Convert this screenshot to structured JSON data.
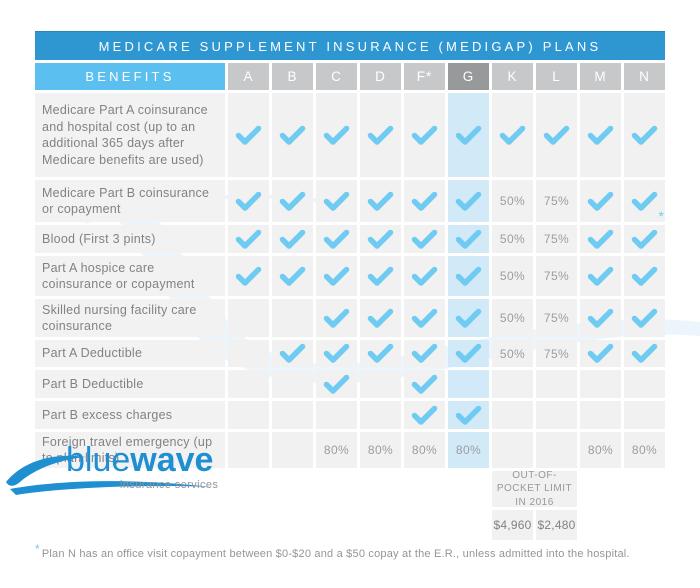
{
  "title": "MEDICARE SUPPLEMENT INSURANCE (MEDIGAP) PLANS",
  "header": {
    "benefits_label": "BENEFITS",
    "plans": [
      "A",
      "B",
      "C",
      "D",
      "F*",
      "G",
      "K",
      "L",
      "M",
      "N"
    ],
    "highlighted_plan": "G"
  },
  "rows": [
    {
      "benefit": "Medicare Part A coinsurance and hospital cost (up to an additional 365 days after Medicare benefits are used)",
      "values": [
        "check",
        "check",
        "check",
        "check",
        "check",
        "check",
        "check",
        "check",
        "check",
        "check"
      ]
    },
    {
      "benefit": "Medicare Part B coinsurance or copayment",
      "values": [
        "check",
        "check",
        "check",
        "check",
        "check",
        "check",
        "50%",
        "75%",
        "check",
        "check*"
      ]
    },
    {
      "benefit": "Blood (First 3 pints)",
      "values": [
        "check",
        "check",
        "check",
        "check",
        "check",
        "check",
        "50%",
        "75%",
        "check",
        "check"
      ]
    },
    {
      "benefit": "Part A hospice care coinsurance or copayment",
      "values": [
        "check",
        "check",
        "check",
        "check",
        "check",
        "check",
        "50%",
        "75%",
        "check",
        "check"
      ]
    },
    {
      "benefit": "Skilled nursing facility care coinsurance",
      "values": [
        "",
        "",
        "check",
        "check",
        "check",
        "check",
        "50%",
        "75%",
        "check",
        "check"
      ]
    },
    {
      "benefit": "Part A Deductible",
      "values": [
        "",
        "check",
        "check",
        "check",
        "check",
        "check",
        "50%",
        "75%",
        "check",
        "check"
      ]
    },
    {
      "benefit": "Part B Deductible",
      "values": [
        "",
        "",
        "check",
        "",
        "check",
        "",
        "",
        "",
        "",
        ""
      ]
    },
    {
      "benefit": "Part B excess charges",
      "values": [
        "",
        "",
        "",
        "",
        "check",
        "check",
        "",
        "",
        "",
        ""
      ]
    },
    {
      "benefit": "Foreign travel emergency (up to plan limits)",
      "values": [
        "",
        "",
        "80%",
        "80%",
        "80%",
        "80%",
        "",
        "",
        "80%",
        "80%"
      ]
    }
  ],
  "footer": {
    "out_of_pocket": {
      "label": "OUT-OF-POCKET LIMIT IN 2016",
      "values": [
        "$4,960",
        "$2,480"
      ]
    },
    "logo": {
      "part1": "blue",
      "part2": "wave",
      "tagline": "insurance services"
    },
    "footnote_marker": "*",
    "footnote": "Plan N has an office visit copayment between $0-$20 and a $50 copay at the E.R., unless admitted into the hospital."
  },
  "colors": {
    "title_bar": "#2E96D1",
    "benefits_header": "#5BC0EF",
    "plan_header": "#C7C8CA",
    "plan_header_highlight": "#97999B",
    "cell_bg": "#F1F1F2",
    "g_column_bg": "#D2EAF8",
    "check": "#70CBF2",
    "label_text": "#808285",
    "percent_text": "#9B9DA0",
    "logo_blue": "#1E8FD0"
  }
}
